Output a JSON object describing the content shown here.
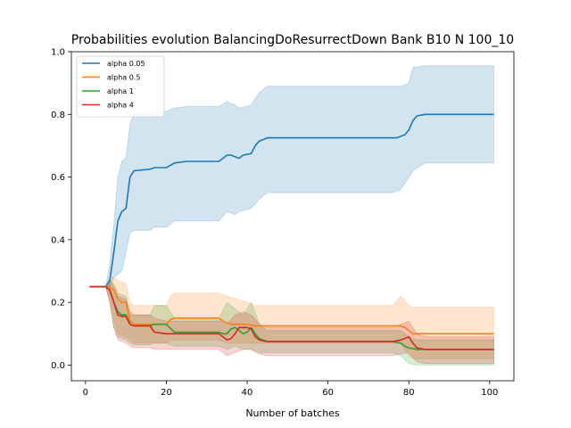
{
  "chart_data": {
    "type": "line",
    "title": "Probabilities evolution BalancingDoResurrectDown Bank B10 N 100_10",
    "xlabel": "Number of batches",
    "ylabel": "",
    "xlim": [
      -3.5,
      106
    ],
    "ylim": [
      -0.05,
      1.0
    ],
    "xticks": [
      0,
      20,
      40,
      60,
      80,
      100
    ],
    "yticks": [
      0.0,
      0.2,
      0.4,
      0.6,
      0.8,
      1.0
    ],
    "ytick_labels": [
      "0.0",
      "0.2",
      "0.4",
      "0.6",
      "0.8",
      "1.0"
    ],
    "grid": false,
    "legend_position": "top-left",
    "series": [
      {
        "name": "alpha 0.05",
        "color": "#1f77b4",
        "points": [
          [
            1,
            0.25
          ],
          [
            5,
            0.25
          ],
          [
            6,
            0.27
          ],
          [
            7,
            0.36
          ],
          [
            8,
            0.46
          ],
          [
            9,
            0.49
          ],
          [
            10,
            0.5
          ],
          [
            11,
            0.6
          ],
          [
            12,
            0.62
          ],
          [
            16,
            0.625
          ],
          [
            17,
            0.63
          ],
          [
            20,
            0.63
          ],
          [
            22,
            0.645
          ],
          [
            25,
            0.65
          ],
          [
            33,
            0.65
          ],
          [
            34,
            0.66
          ],
          [
            35,
            0.67
          ],
          [
            36,
            0.67
          ],
          [
            37,
            0.665
          ],
          [
            38,
            0.66
          ],
          [
            39,
            0.67
          ],
          [
            41,
            0.675
          ],
          [
            42,
            0.7
          ],
          [
            43,
            0.715
          ],
          [
            45,
            0.725
          ],
          [
            76,
            0.725
          ],
          [
            77,
            0.725
          ],
          [
            78,
            0.73
          ],
          [
            79,
            0.735
          ],
          [
            80,
            0.75
          ],
          [
            81,
            0.78
          ],
          [
            82,
            0.795
          ],
          [
            84,
            0.8
          ],
          [
            101,
            0.8
          ]
        ],
        "band": [
          [
            1,
            0.25,
            0.25
          ],
          [
            5,
            0.25,
            0.25
          ],
          [
            6,
            0.25,
            0.32
          ],
          [
            7,
            0.28,
            0.45
          ],
          [
            8,
            0.29,
            0.6
          ],
          [
            9,
            0.3,
            0.65
          ],
          [
            10,
            0.36,
            0.66
          ],
          [
            11,
            0.42,
            0.77
          ],
          [
            12,
            0.43,
            0.8
          ],
          [
            16,
            0.43,
            0.81
          ],
          [
            17,
            0.44,
            0.81
          ],
          [
            20,
            0.44,
            0.81
          ],
          [
            22,
            0.46,
            0.82
          ],
          [
            25,
            0.46,
            0.825
          ],
          [
            33,
            0.46,
            0.825
          ],
          [
            35,
            0.49,
            0.84
          ],
          [
            37,
            0.48,
            0.83
          ],
          [
            38,
            0.49,
            0.82
          ],
          [
            41,
            0.5,
            0.83
          ],
          [
            43,
            0.53,
            0.87
          ],
          [
            45,
            0.55,
            0.89
          ],
          [
            76,
            0.55,
            0.89
          ],
          [
            78,
            0.56,
            0.89
          ],
          [
            80,
            0.6,
            0.9
          ],
          [
            81,
            0.62,
            0.95
          ],
          [
            84,
            0.645,
            0.955
          ],
          [
            101,
            0.645,
            0.955
          ]
        ]
      },
      {
        "name": "alpha 0.5",
        "color": "#ff7f0e",
        "points": [
          [
            1,
            0.25
          ],
          [
            5,
            0.25
          ],
          [
            6,
            0.25
          ],
          [
            7,
            0.24
          ],
          [
            8,
            0.21
          ],
          [
            9,
            0.2
          ],
          [
            10,
            0.2
          ],
          [
            11,
            0.14
          ],
          [
            12,
            0.13
          ],
          [
            16,
            0.13
          ],
          [
            17,
            0.13
          ],
          [
            20,
            0.13
          ],
          [
            21,
            0.145
          ],
          [
            22,
            0.15
          ],
          [
            33,
            0.15
          ],
          [
            34,
            0.14
          ],
          [
            36,
            0.13
          ],
          [
            40,
            0.13
          ],
          [
            42,
            0.125
          ],
          [
            76,
            0.125
          ],
          [
            78,
            0.125
          ],
          [
            79,
            0.12
          ],
          [
            80,
            0.11
          ],
          [
            81,
            0.1
          ],
          [
            84,
            0.1
          ],
          [
            101,
            0.1
          ]
        ],
        "band": [
          [
            1,
            0.25,
            0.25
          ],
          [
            5,
            0.25,
            0.25
          ],
          [
            6,
            0.22,
            0.28
          ],
          [
            7,
            0.15,
            0.28
          ],
          [
            8,
            0.1,
            0.27
          ],
          [
            10,
            0.09,
            0.26
          ],
          [
            11,
            0.08,
            0.2
          ],
          [
            12,
            0.07,
            0.19
          ],
          [
            20,
            0.07,
            0.19
          ],
          [
            21,
            0.08,
            0.22
          ],
          [
            22,
            0.08,
            0.23
          ],
          [
            33,
            0.08,
            0.23
          ],
          [
            35,
            0.07,
            0.22
          ],
          [
            40,
            0.07,
            0.2
          ],
          [
            42,
            0.07,
            0.19
          ],
          [
            76,
            0.07,
            0.19
          ],
          [
            78,
            0.07,
            0.22
          ],
          [
            80,
            0.03,
            0.19
          ],
          [
            81,
            0.02,
            0.185
          ],
          [
            84,
            0.02,
            0.185
          ],
          [
            101,
            0.02,
            0.185
          ]
        ]
      },
      {
        "name": "alpha 1",
        "color": "#2ca02c",
        "points": [
          [
            1,
            0.25
          ],
          [
            5,
            0.25
          ],
          [
            6,
            0.24
          ],
          [
            7,
            0.2
          ],
          [
            8,
            0.17
          ],
          [
            9,
            0.16
          ],
          [
            10,
            0.16
          ],
          [
            11,
            0.13
          ],
          [
            12,
            0.125
          ],
          [
            16,
            0.125
          ],
          [
            17,
            0.13
          ],
          [
            20,
            0.13
          ],
          [
            22,
            0.105
          ],
          [
            33,
            0.105
          ],
          [
            34,
            0.1
          ],
          [
            35,
            0.1
          ],
          [
            36,
            0.115
          ],
          [
            37,
            0.12
          ],
          [
            38,
            0.11
          ],
          [
            39,
            0.1
          ],
          [
            40,
            0.105
          ],
          [
            41,
            0.12
          ],
          [
            42,
            0.1
          ],
          [
            43,
            0.085
          ],
          [
            45,
            0.075
          ],
          [
            76,
            0.075
          ],
          [
            78,
            0.07
          ],
          [
            79,
            0.06
          ],
          [
            80,
            0.055
          ],
          [
            82,
            0.05
          ],
          [
            101,
            0.05
          ]
        ],
        "band": [
          [
            1,
            0.25,
            0.25
          ],
          [
            5,
            0.25,
            0.25
          ],
          [
            6,
            0.2,
            0.27
          ],
          [
            7,
            0.12,
            0.26
          ],
          [
            8,
            0.09,
            0.23
          ],
          [
            10,
            0.08,
            0.22
          ],
          [
            11,
            0.07,
            0.16
          ],
          [
            12,
            0.065,
            0.16
          ],
          [
            16,
            0.065,
            0.16
          ],
          [
            17,
            0.07,
            0.19
          ],
          [
            20,
            0.07,
            0.19
          ],
          [
            22,
            0.06,
            0.15
          ],
          [
            33,
            0.06,
            0.15
          ],
          [
            35,
            0.05,
            0.2
          ],
          [
            37,
            0.06,
            0.18
          ],
          [
            39,
            0.05,
            0.16
          ],
          [
            41,
            0.05,
            0.2
          ],
          [
            43,
            0.04,
            0.13
          ],
          [
            45,
            0.04,
            0.11
          ],
          [
            76,
            0.04,
            0.11
          ],
          [
            78,
            0.03,
            0.11
          ],
          [
            80,
            0.005,
            0.09
          ],
          [
            82,
            0.0,
            0.08
          ],
          [
            101,
            0.0,
            0.08
          ]
        ]
      },
      {
        "name": "alpha 4",
        "color": "#d62728",
        "points": [
          [
            1,
            0.25
          ],
          [
            5,
            0.25
          ],
          [
            6,
            0.24
          ],
          [
            7,
            0.2
          ],
          [
            8,
            0.16
          ],
          [
            9,
            0.155
          ],
          [
            10,
            0.155
          ],
          [
            11,
            0.13
          ],
          [
            12,
            0.125
          ],
          [
            16,
            0.125
          ],
          [
            17,
            0.105
          ],
          [
            20,
            0.1
          ],
          [
            33,
            0.1
          ],
          [
            34,
            0.09
          ],
          [
            35,
            0.08
          ],
          [
            36,
            0.085
          ],
          [
            37,
            0.1
          ],
          [
            38,
            0.12
          ],
          [
            40,
            0.12
          ],
          [
            41,
            0.115
          ],
          [
            42,
            0.09
          ],
          [
            43,
            0.08
          ],
          [
            45,
            0.075
          ],
          [
            76,
            0.075
          ],
          [
            78,
            0.08
          ],
          [
            79,
            0.085
          ],
          [
            80,
            0.09
          ],
          [
            81,
            0.07
          ],
          [
            82,
            0.055
          ],
          [
            84,
            0.05
          ],
          [
            101,
            0.05
          ]
        ],
        "band": [
          [
            1,
            0.25,
            0.25
          ],
          [
            5,
            0.25,
            0.25
          ],
          [
            6,
            0.2,
            0.27
          ],
          [
            7,
            0.12,
            0.25
          ],
          [
            8,
            0.08,
            0.22
          ],
          [
            10,
            0.07,
            0.21
          ],
          [
            11,
            0.06,
            0.17
          ],
          [
            12,
            0.055,
            0.16
          ],
          [
            16,
            0.055,
            0.16
          ],
          [
            17,
            0.05,
            0.15
          ],
          [
            20,
            0.05,
            0.14
          ],
          [
            33,
            0.05,
            0.14
          ],
          [
            35,
            0.03,
            0.13
          ],
          [
            37,
            0.04,
            0.16
          ],
          [
            39,
            0.05,
            0.17
          ],
          [
            41,
            0.05,
            0.16
          ],
          [
            43,
            0.035,
            0.13
          ],
          [
            45,
            0.03,
            0.12
          ],
          [
            76,
            0.03,
            0.12
          ],
          [
            78,
            0.035,
            0.13
          ],
          [
            80,
            0.04,
            0.14
          ],
          [
            82,
            0.01,
            0.1
          ],
          [
            84,
            0.005,
            0.09
          ],
          [
            101,
            0.005,
            0.09
          ]
        ]
      }
    ]
  }
}
